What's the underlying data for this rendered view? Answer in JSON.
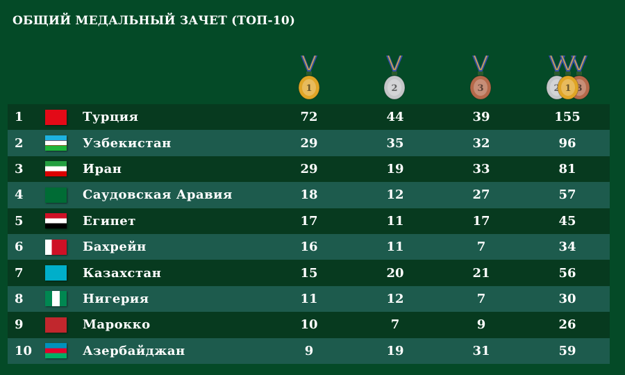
{
  "title": "ОБЩИЙ МЕДАЛЬНЫЙ ЗАЧЕТ (ТОП-10)",
  "headers": [
    {
      "icon": "gold-medal-icon",
      "label": "1",
      "color": "#e0a526"
    },
    {
      "icon": "silver-medal-icon",
      "label": "2",
      "color": "#c4c6c8"
    },
    {
      "icon": "bronze-medal-icon",
      "label": "3",
      "color": "#b5694a"
    },
    {
      "icon": "total-medals-icon",
      "label": "1",
      "color": "#e0a526"
    }
  ],
  "rows": [
    {
      "rank": "1",
      "country": "Турция",
      "flag": "flag-turkey-icon",
      "gold": "72",
      "silver": "44",
      "bronze": "39",
      "total": "155"
    },
    {
      "rank": "2",
      "country": "Узбекистан",
      "flag": "flag-uzbekistan-icon",
      "gold": "29",
      "silver": "35",
      "bronze": "32",
      "total": "96"
    },
    {
      "rank": "3",
      "country": "Иран",
      "flag": "flag-iran-icon",
      "gold": "29",
      "silver": "19",
      "bronze": "33",
      "total": "81"
    },
    {
      "rank": "4",
      "country": "Саудовская Аравия",
      "flag": "flag-saudi-arabia-icon",
      "gold": "18",
      "silver": "12",
      "bronze": "27",
      "total": "57"
    },
    {
      "rank": "5",
      "country": "Египет",
      "flag": "flag-egypt-icon",
      "gold": "17",
      "silver": "11",
      "bronze": "17",
      "total": "45"
    },
    {
      "rank": "6",
      "country": "Бахрейн",
      "flag": "flag-bahrain-icon",
      "gold": "16",
      "silver": "11",
      "bronze": "7",
      "total": "34"
    },
    {
      "rank": "7",
      "country": "Казахстан",
      "flag": "flag-kazakhstan-icon",
      "gold": "15",
      "silver": "20",
      "bronze": "21",
      "total": "56"
    },
    {
      "rank": "8",
      "country": "Нигерия",
      "flag": "flag-nigeria-icon",
      "gold": "11",
      "silver": "12",
      "bronze": "7",
      "total": "30"
    },
    {
      "rank": "9",
      "country": "Марокко",
      "flag": "flag-morocco-icon",
      "gold": "10",
      "silver": "7",
      "bronze": "9",
      "total": "26"
    },
    {
      "rank": "10",
      "country": "Азербайджан",
      "flag": "flag-azerbaijan-icon",
      "gold": "9",
      "silver": "19",
      "bronze": "31",
      "total": "59"
    }
  ]
}
